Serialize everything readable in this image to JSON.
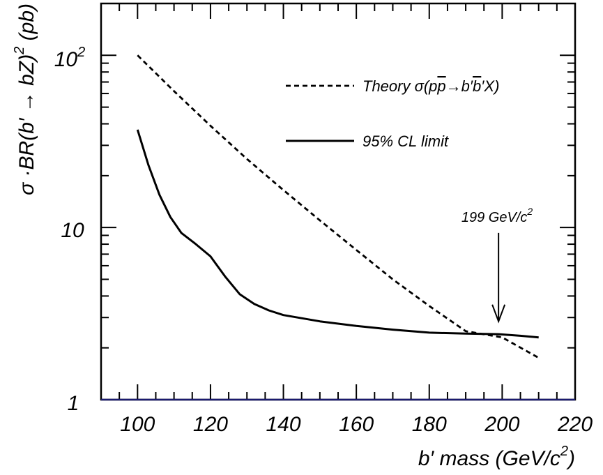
{
  "chart_data": {
    "type": "line",
    "xlabel_text": "b′ mass (GeV/c",
    "xlabel_sup": "2",
    "xlabel_close": ")",
    "ylabel_text": "σ ·BR(b′ → bZ)",
    "ylabel_sup": "2",
    "ylabel_unit": " (pb)",
    "xlim": [
      90,
      220
    ],
    "ylim": [
      1,
      200
    ],
    "yscale": "log",
    "x_ticks": [
      100,
      120,
      140,
      160,
      180,
      200,
      220
    ],
    "x_tick_labels": [
      "100",
      "120",
      "140",
      "160",
      "180",
      "200",
      "220"
    ],
    "y_tick_label_1": "1",
    "y_tick_label_10": "10",
    "y_tick_label_100_base": "10",
    "y_tick_label_100_exp": "2",
    "series": [
      {
        "name": "Theory σ(pp̄→b′b̄′X)",
        "style": "dashed",
        "x": [
          100,
          110,
          120,
          130,
          140,
          150,
          160,
          170,
          180,
          190,
          200,
          210
        ],
        "y": [
          100,
          62,
          39,
          25,
          16.5,
          11.0,
          7.4,
          5.0,
          3.5,
          2.5,
          2.3,
          1.75
        ]
      },
      {
        "name": "95% CL limit",
        "style": "solid",
        "x": [
          100,
          103,
          106,
          109,
          112,
          116,
          120,
          124,
          128,
          132,
          136,
          140,
          150,
          160,
          170,
          180,
          190,
          199,
          205,
          210
        ],
        "y": [
          37,
          23,
          15.5,
          11.5,
          9.3,
          8.0,
          6.8,
          5.2,
          4.1,
          3.6,
          3.3,
          3.1,
          2.85,
          2.68,
          2.55,
          2.45,
          2.42,
          2.4,
          2.35,
          2.3
        ]
      }
    ],
    "legend": [
      {
        "label_prefix": "Theory σ(p",
        "label_p": "p",
        "label_arrow": "→b′",
        "label_b": "b",
        "label_suffix": "′X)",
        "style": "dashed"
      },
      {
        "label": "95% CL limit",
        "style": "solid"
      }
    ],
    "legend_position": "top-right",
    "annotation": {
      "text_main": "199 GeV/c",
      "text_sup": "2",
      "x": 199,
      "arrow_from_y": 9.3,
      "arrow_to_y": 2.85
    }
  }
}
